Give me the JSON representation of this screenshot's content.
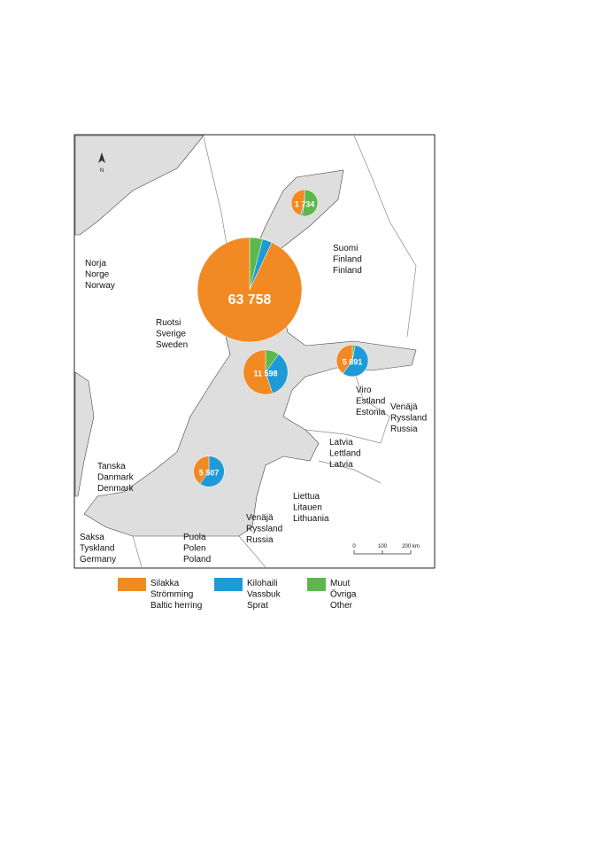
{
  "map": {
    "countries": [
      {
        "lines": [
          "Norja",
          "Norge",
          "Norway"
        ]
      },
      {
        "lines": [
          "Suomi",
          "Finland",
          "Finland"
        ]
      },
      {
        "lines": [
          "Ruotsi",
          "Sverige",
          "Sweden"
        ]
      },
      {
        "lines": [
          "Viro",
          "Estland",
          "Estonia"
        ]
      },
      {
        "lines": [
          "Venäjä",
          "Ryssland",
          "Russia"
        ]
      },
      {
        "lines": [
          "Latvia",
          "Lettland",
          "Latvia"
        ]
      },
      {
        "lines": [
          "Tanska",
          "Danmark",
          "Denmark"
        ]
      },
      {
        "lines": [
          "Liettua",
          "Litauen",
          "Lithuania"
        ]
      },
      {
        "lines": [
          "Venäjä",
          "Ryssland",
          "Russia"
        ]
      },
      {
        "lines": [
          "Saksa",
          "Tyskland",
          "Germany"
        ]
      },
      {
        "lines": [
          "Puola",
          "Polen",
          "Poland"
        ]
      }
    ],
    "pies": [
      {
        "total": {
          "value": 1734,
          "label": "1 734"
        },
        "shares": [
          53,
          2,
          45
        ]
      },
      {
        "total": {
          "value": 63758,
          "label": "63 758"
        },
        "shares": [
          4,
          3,
          93
        ]
      },
      {
        "total": {
          "value": 11598,
          "label": "11 598"
        },
        "shares": [
          10,
          35,
          55
        ]
      },
      {
        "total": {
          "value": 5891,
          "label": "5 891"
        },
        "shares": [
          3,
          57,
          40
        ]
      },
      {
        "total": {
          "value": 5507,
          "label": "5 507"
        },
        "shares": [
          0,
          60,
          40
        ]
      }
    ],
    "scale": {
      "ticks": [
        0,
        100,
        {
          "value": 200,
          "label": "200 km"
        }
      ]
    }
  },
  "legend": [
    {
      "color": "#5cb84a",
      "lines": [
        "Muut",
        "Övriga",
        "Other"
      ]
    },
    {
      "color": "#1e9bd7",
      "lines": [
        "Kilohaili",
        "Vassbuk",
        "Sprat"
      ]
    },
    {
      "color": "#f28a24",
      "lines": [
        "Silakka",
        "Strömming",
        "Baltic herring"
      ]
    }
  ]
}
